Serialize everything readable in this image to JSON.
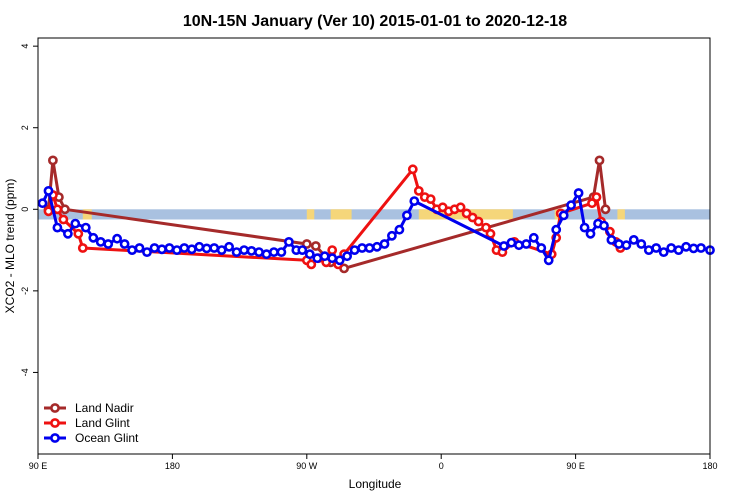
{
  "chart_data": {
    "type": "line",
    "title": "10N-15N January (Ver 10)   2015-01-01 to 2020-12-18",
    "xlabel": "Longitude",
    "ylabel": "XCO2 - MLO trend (ppm)",
    "xlim": [
      0,
      450
    ],
    "ylim": [
      -6,
      4.2
    ],
    "x_ticks": [
      {
        "value": 0,
        "label": "90 E"
      },
      {
        "value": 90,
        "label": "180"
      },
      {
        "value": 180,
        "label": "90 W"
      },
      {
        "value": 270,
        "label": "0"
      },
      {
        "value": 360,
        "label": "90 E"
      },
      {
        "value": 450,
        "label": "180"
      }
    ],
    "y_ticks": [
      {
        "value": 4,
        "label": "4"
      },
      {
        "value": 2,
        "label": "2"
      },
      {
        "value": 0,
        "label": "0"
      },
      {
        "value": -2,
        "label": "-2"
      },
      {
        "value": -4,
        "label": "-4"
      }
    ],
    "background_band": {
      "ymin": -0.25,
      "ymax": 0.0,
      "ocean_color": "#a9c1e0",
      "land_color": "#f5d67a",
      "land_segments": [
        [
          30,
          36
        ],
        [
          180,
          185
        ],
        [
          196,
          210
        ],
        [
          255,
          318
        ],
        [
          346,
          352
        ],
        [
          388,
          393
        ]
      ]
    },
    "legend": {
      "position": "bottom-left",
      "entries": [
        "Land Nadir",
        "Land Glint",
        "Ocean Glint"
      ]
    },
    "series": [
      {
        "name": "Land Nadir",
        "color": "#a52a2a",
        "x": [
          7,
          10,
          14,
          18,
          180,
          186,
          196,
          205,
          372,
          376,
          380
        ],
        "y": [
          0.0,
          1.2,
          0.3,
          0.0,
          -0.85,
          -0.9,
          -1.3,
          -1.45,
          0.3,
          1.2,
          0.0
        ]
      },
      {
        "name": "Land Glint",
        "color": "#ee1111",
        "x": [
          7,
          10,
          13,
          17,
          27,
          30,
          180,
          183,
          188,
          193,
          197,
          201,
          205,
          251,
          255,
          259,
          263,
          267,
          271,
          275,
          279,
          283,
          287,
          291,
          295,
          300,
          303,
          307,
          311,
          319,
          344,
          347,
          350,
          371,
          374,
          377,
          383,
          387,
          390
        ],
        "y": [
          -0.05,
          0.35,
          0.0,
          -0.25,
          -0.6,
          -0.95,
          -1.25,
          -1.35,
          -1.2,
          -1.3,
          -1.0,
          -1.35,
          -1.1,
          0.98,
          0.45,
          0.3,
          0.25,
          0.0,
          0.05,
          -0.05,
          0.0,
          0.05,
          -0.1,
          -0.2,
          -0.3,
          -0.45,
          -0.6,
          -1.0,
          -1.05,
          -0.8,
          -1.1,
          -0.7,
          -0.1,
          0.15,
          0.3,
          -0.3,
          -0.55,
          -0.8,
          -0.95
        ]
      },
      {
        "name": "Ocean Glint",
        "color": "#0000ee",
        "x": [
          3,
          7,
          13,
          20,
          25,
          32,
          37,
          42,
          47,
          53,
          58,
          63,
          68,
          73,
          78,
          83,
          88,
          93,
          98,
          103,
          108,
          113,
          118,
          123,
          128,
          133,
          138,
          143,
          148,
          153,
          158,
          163,
          168,
          173,
          177,
          182,
          187,
          192,
          197,
          202,
          207,
          212,
          217,
          222,
          227,
          232,
          237,
          242,
          247,
          252,
          312,
          317,
          322,
          327,
          332,
          337,
          342,
          347,
          352,
          357,
          362,
          366,
          370,
          375,
          379,
          384,
          389,
          394,
          399,
          404,
          409,
          414,
          419,
          424,
          429,
          434,
          439,
          444,
          450
        ],
        "y": [
          0.15,
          0.45,
          -0.45,
          -0.6,
          -0.35,
          -0.45,
          -0.7,
          -0.8,
          -0.85,
          -0.72,
          -0.85,
          -1.0,
          -0.95,
          -1.05,
          -0.95,
          -0.98,
          -0.95,
          -1.0,
          -0.95,
          -0.98,
          -0.92,
          -0.96,
          -0.95,
          -1.0,
          -0.92,
          -1.05,
          -1.0,
          -1.02,
          -1.05,
          -1.1,
          -1.05,
          -1.05,
          -0.8,
          -1.0,
          -1.0,
          -1.1,
          -1.2,
          -1.15,
          -1.2,
          -1.25,
          -1.15,
          -1.0,
          -0.95,
          -0.95,
          -0.92,
          -0.85,
          -0.65,
          -0.5,
          -0.15,
          0.2,
          -0.9,
          -0.82,
          -0.88,
          -0.85,
          -0.7,
          -0.95,
          -1.25,
          -0.5,
          -0.15,
          0.1,
          0.4,
          -0.45,
          -0.6,
          -0.35,
          -0.4,
          -0.75,
          -0.85,
          -0.88,
          -0.75,
          -0.85,
          -1.0,
          -0.95,
          -1.05,
          -0.95,
          -1.0,
          -0.92,
          -0.96,
          -0.95,
          -1.0
        ]
      }
    ]
  }
}
